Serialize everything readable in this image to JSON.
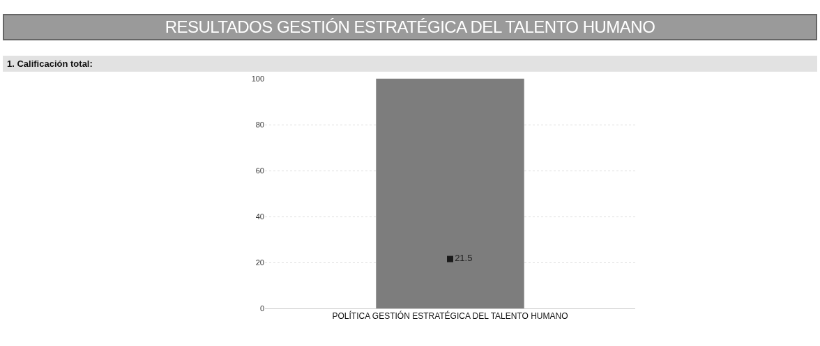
{
  "chart_data": {
    "type": "bar",
    "title": "RESULTADOS GESTIÓN ESTRATÉGICA DEL TALENTO HUMANO",
    "subtitle": "1. Calificación total:",
    "categories": [
      "POLÍTICA GESTIÓN ESTRATÉGICA DEL TALENTO HUMANO"
    ],
    "series": [
      {
        "color": "#7d7d7d",
        "values": [
          100
        ]
      },
      {
        "type": "scatter",
        "color": "#1a1a1a",
        "values": [
          21.5
        ],
        "value_labels": [
          "21.5"
        ],
        "marker": "square"
      }
    ],
    "ylim": [
      0,
      100
    ],
    "yticks": [
      0,
      20,
      40,
      60,
      80,
      100
    ],
    "grid": "y",
    "legend": false
  }
}
